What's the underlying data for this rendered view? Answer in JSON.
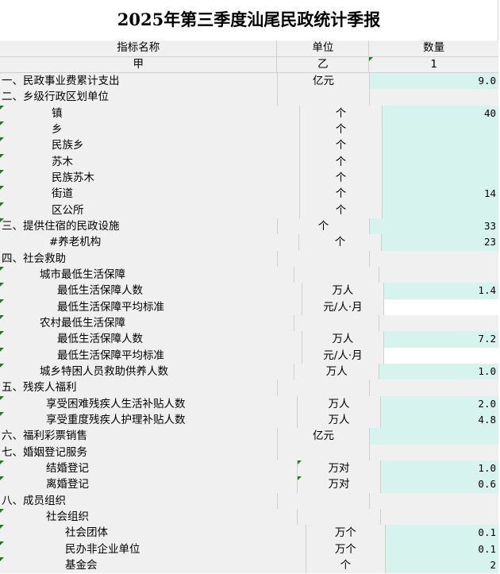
{
  "title": "2025年第三季度汕尾民政统计季报",
  "header": {
    "col1": "指标名称",
    "col2": "单位",
    "col3": "数量",
    "sub1": "甲",
    "sub2": "乙",
    "sub3": "1"
  },
  "rows": [
    {
      "name": "一、民政事业费累计支出",
      "unit": "亿元",
      "value": "9.0",
      "fill": "teal"
    },
    {
      "name": "二、乡级行政区划单位",
      "unit": "",
      "value": "",
      "fill": "none"
    },
    {
      "name": "镇",
      "unit": "个",
      "value": "40",
      "fill": "teal"
    },
    {
      "name": "乡",
      "unit": "个",
      "value": "",
      "fill": "teal"
    },
    {
      "name": "民族乡",
      "unit": "个",
      "value": "",
      "fill": "teal"
    },
    {
      "name": "苏木",
      "unit": "个",
      "value": "",
      "fill": "teal"
    },
    {
      "name": "民族苏木",
      "unit": "个",
      "value": "",
      "fill": "teal"
    },
    {
      "name": "街道",
      "unit": "个",
      "value": "14",
      "fill": "teal"
    },
    {
      "name": "区公所",
      "unit": "个",
      "value": "",
      "fill": "teal"
    },
    {
      "name": "三、提供住宿的民政设施",
      "unit": "个",
      "value": "33",
      "fill": "teal"
    },
    {
      "name": "#养老机构",
      "unit": "个",
      "value": "23",
      "fill": "teal"
    },
    {
      "name": "四、社会救助",
      "unit": "",
      "value": "",
      "fill": "none"
    },
    {
      "name": "城市最低生活保障",
      "unit": "",
      "value": "",
      "fill": "none"
    },
    {
      "name": "最低生活保障人数",
      "unit": "万人",
      "value": "1.4",
      "fill": "teal"
    },
    {
      "name": "最低生活保障平均标准",
      "unit": "元/人·月",
      "value": "",
      "fill": "white"
    },
    {
      "name": "农村最低生活保障",
      "unit": "",
      "value": "",
      "fill": "none"
    },
    {
      "name": "最低生活保障人数",
      "unit": "万人",
      "value": "7.2",
      "fill": "teal"
    },
    {
      "name": "最低生活保障平均标准",
      "unit": "元/人·月",
      "value": "",
      "fill": "white"
    },
    {
      "name": "城乡特困人员救助供养人数",
      "unit": "万人",
      "value": "1.0",
      "fill": "teal"
    },
    {
      "name": "五、残疾人福利",
      "unit": "",
      "value": "",
      "fill": "none"
    },
    {
      "name": "享受困难残疾人生活补贴人数",
      "unit": "万人",
      "value": "2.0",
      "fill": "teal"
    },
    {
      "name": "享受重度残疾人护理补贴人数",
      "unit": "万人",
      "value": "4.8",
      "fill": "teal"
    },
    {
      "name": "六、福利彩票销售",
      "unit": "亿元",
      "value": "",
      "fill": "teal"
    },
    {
      "name": "七、婚姻登记服务",
      "unit": "",
      "value": "",
      "fill": "none"
    },
    {
      "name": "结婚登记",
      "unit": "万对",
      "value": "1.0",
      "fill": "teal"
    },
    {
      "name": "离婚登记",
      "unit": "万对",
      "value": "0.6",
      "fill": "teal"
    },
    {
      "name": "八、成员组织",
      "unit": "",
      "value": "",
      "fill": "none"
    },
    {
      "name": "社会组织",
      "unit": "",
      "value": "",
      "fill": "none"
    },
    {
      "name": "社会团体",
      "unit": "万个",
      "value": "0.1",
      "fill": "teal"
    },
    {
      "name": "民办非企业单位",
      "unit": "万个",
      "value": "0.1",
      "fill": "teal"
    },
    {
      "name": "基金会",
      "unit": "个",
      "value": "2",
      "fill": "teal"
    }
  ]
}
